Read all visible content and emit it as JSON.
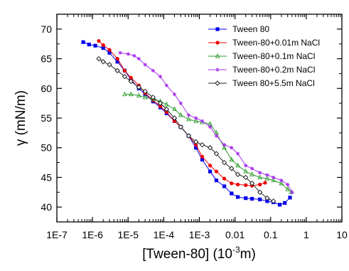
{
  "chart_data": {
    "type": "scatter",
    "xlabel": "[Tween-80] (10",
    "xlabel_sup": "-3",
    "xlabel_end": "m)",
    "ylabel": "γ (mN/m)",
    "xscale": "log",
    "xlim": [
      1e-07,
      10
    ],
    "ylim": [
      37.5,
      72.5
    ],
    "x_tick_values": [
      1e-07,
      1e-06,
      1e-05,
      0.0001,
      0.001,
      0.01,
      0.1,
      1,
      10
    ],
    "x_tick_labels": [
      "1E-7",
      "1E-6",
      "1E-5",
      "1E-4",
      "1E-3",
      "0.01",
      "0.1",
      "1",
      "10"
    ],
    "y_tick_values": [
      40,
      45,
      50,
      55,
      60,
      65,
      70
    ],
    "y_tick_labels": [
      "40",
      "45",
      "50",
      "55",
      "60",
      "65",
      "70"
    ],
    "grid": false,
    "legend_position": "top-right",
    "series": [
      {
        "name": "Tween 80",
        "color": "#0000ee",
        "marker": "square",
        "points": [
          [
            5.5e-07,
            67.8
          ],
          [
            8e-07,
            67.4
          ],
          [
            1.2e-06,
            67.2
          ],
          [
            2e-06,
            66.8
          ],
          [
            3e-06,
            66.0
          ],
          [
            5e-06,
            64.5
          ],
          [
            8e-06,
            63.0
          ],
          [
            1.2e-05,
            61.5
          ],
          [
            2e-05,
            60.0
          ],
          [
            3e-05,
            59.0
          ],
          [
            5e-05,
            57.8
          ],
          [
            8e-05,
            56.8
          ],
          [
            0.00012,
            55.8
          ],
          [
            0.0002,
            54.5
          ],
          [
            0.0003,
            53.5
          ],
          [
            0.0005,
            52.0
          ],
          [
            0.0008,
            50.0
          ],
          [
            0.0012,
            48.0
          ],
          [
            0.002,
            46.0
          ],
          [
            0.003,
            44.5
          ],
          [
            0.005,
            43.5
          ],
          [
            0.008,
            42.3
          ],
          [
            0.012,
            41.7
          ],
          [
            0.02,
            41.5
          ],
          [
            0.03,
            41.4
          ],
          [
            0.05,
            41.3
          ],
          [
            0.08,
            41.0
          ],
          [
            0.12,
            40.8
          ],
          [
            0.18,
            40.4
          ],
          [
            0.25,
            40.7
          ],
          [
            0.35,
            41.6
          ]
        ]
      },
      {
        "name": "Tween-80+0.01m NaCl",
        "color": "#ee0000",
        "marker": "circle",
        "points": [
          [
            1.5e-06,
            68.0
          ],
          [
            2e-06,
            67.3
          ],
          [
            3e-06,
            66.5
          ],
          [
            5e-06,
            65.0
          ],
          [
            8e-06,
            63.0
          ],
          [
            1.2e-05,
            61.8
          ],
          [
            2e-05,
            60.5
          ],
          [
            3e-05,
            59.2
          ],
          [
            5e-05,
            58.0
          ],
          [
            8e-05,
            57.0
          ],
          [
            0.00012,
            56.0
          ],
          [
            0.0002,
            54.5
          ],
          [
            0.0003,
            53.5
          ],
          [
            0.0005,
            52.0
          ],
          [
            0.0008,
            50.5
          ],
          [
            0.0012,
            48.5
          ],
          [
            0.002,
            47.0
          ],
          [
            0.003,
            46.0
          ],
          [
            0.005,
            44.8
          ],
          [
            0.008,
            44.0
          ],
          [
            0.012,
            43.8
          ],
          [
            0.02,
            43.7
          ],
          [
            0.03,
            43.6
          ],
          [
            0.05,
            43.8
          ],
          [
            0.07,
            44.1
          ]
        ]
      },
      {
        "name": "Tween-80+0.1m NaCl",
        "color": "#2a9a2a",
        "marker": "triangle",
        "points": [
          [
            8e-06,
            59.0
          ],
          [
            1.2e-05,
            59.0
          ],
          [
            2e-05,
            58.8
          ],
          [
            3e-05,
            58.5
          ],
          [
            5e-05,
            58.2
          ],
          [
            8e-05,
            57.8
          ],
          [
            0.00012,
            57.3
          ],
          [
            0.0002,
            56.5
          ],
          [
            0.0003,
            55.5
          ],
          [
            0.0005,
            54.8
          ],
          [
            0.0008,
            54.5
          ],
          [
            0.0012,
            54.3
          ],
          [
            0.002,
            54.0
          ],
          [
            0.003,
            52.5
          ],
          [
            0.005,
            50.0
          ],
          [
            0.008,
            48.0
          ],
          [
            0.012,
            47.0
          ],
          [
            0.02,
            46.0
          ],
          [
            0.03,
            45.5
          ],
          [
            0.05,
            45.0
          ],
          [
            0.08,
            44.8
          ],
          [
            0.12,
            44.5
          ],
          [
            0.2,
            44.0
          ],
          [
            0.3,
            43.0
          ],
          [
            0.38,
            42.5
          ]
        ]
      },
      {
        "name": "Tween-80+0.2m NaCl",
        "color": "#aa33ee",
        "marker": "star",
        "points": [
          [
            6e-06,
            66.0
          ],
          [
            1e-05,
            65.8
          ],
          [
            1.5e-05,
            65.5
          ],
          [
            2e-05,
            65.0
          ],
          [
            3e-05,
            64.0
          ],
          [
            5e-05,
            63.0
          ],
          [
            8e-05,
            62.0
          ],
          [
            0.00012,
            60.5
          ],
          [
            0.0002,
            59.0
          ],
          [
            0.0003,
            57.5
          ],
          [
            0.0005,
            55.5
          ],
          [
            0.0008,
            55.0
          ],
          [
            0.0012,
            54.5
          ],
          [
            0.002,
            53.5
          ],
          [
            0.003,
            52.0
          ],
          [
            0.005,
            50.5
          ],
          [
            0.008,
            50.0
          ],
          [
            0.012,
            49.0
          ],
          [
            0.02,
            47.0
          ],
          [
            0.03,
            46.5
          ],
          [
            0.05,
            45.8
          ],
          [
            0.08,
            45.4
          ],
          [
            0.12,
            45.0
          ],
          [
            0.2,
            44.5
          ],
          [
            0.3,
            43.8
          ],
          [
            0.4,
            42.5
          ]
        ]
      },
      {
        "name": "Tween 80+5.5m NaCl",
        "color": "#222222",
        "marker": "diamond",
        "points": [
          [
            1.5e-06,
            65.0
          ],
          [
            2e-06,
            64.5
          ],
          [
            3e-06,
            64.0
          ],
          [
            5e-06,
            63.0
          ],
          [
            8e-06,
            62.0
          ],
          [
            1.2e-05,
            61.2
          ],
          [
            2e-05,
            60.2
          ],
          [
            3e-05,
            59.5
          ],
          [
            5e-05,
            58.5
          ],
          [
            8e-05,
            57.5
          ],
          [
            0.00012,
            56.5
          ],
          [
            0.0002,
            55.0
          ],
          [
            0.0003,
            53.5
          ],
          [
            0.0005,
            52.0
          ],
          [
            0.0008,
            51.0
          ],
          [
            0.0012,
            50.5
          ],
          [
            0.002,
            50.0
          ],
          [
            0.003,
            49.0
          ],
          [
            0.005,
            47.5
          ],
          [
            0.008,
            46.5
          ],
          [
            0.012,
            45.5
          ],
          [
            0.02,
            45.0
          ],
          [
            0.03,
            44.0
          ],
          [
            0.05,
            42.5
          ],
          [
            0.08,
            41.5
          ],
          [
            0.12,
            41.0
          ]
        ]
      }
    ]
  }
}
